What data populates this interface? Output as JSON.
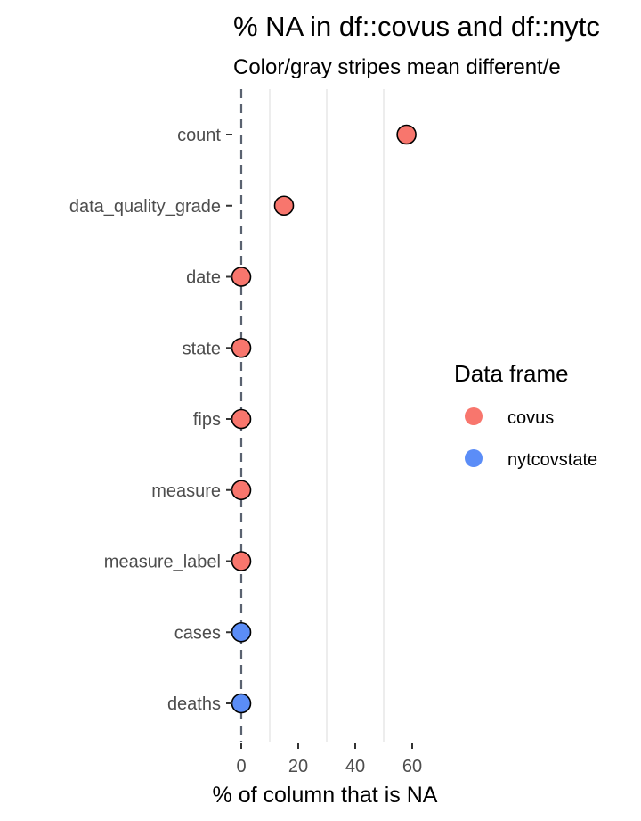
{
  "chart_data": {
    "type": "scatter",
    "title": "% NA in df::covus and df::nytc",
    "subtitle": "Color/gray stripes mean different/e",
    "xlabel": "% of column that is NA",
    "ylabel": "",
    "xlim": [
      0,
      70
    ],
    "x_ticks": [
      "0",
      "20",
      "40",
      "60"
    ],
    "x_tick_values": [
      0,
      20,
      40,
      60
    ],
    "grid": true,
    "legend": {
      "title": "Data frame",
      "position": "right"
    },
    "categories": [
      "count",
      "data_quality_grade",
      "date",
      "state",
      "fips",
      "measure",
      "measure_label",
      "cases",
      "deaths"
    ],
    "series": [
      {
        "name": "covus",
        "color": "#F8766D",
        "points": [
          {
            "label": "count",
            "x": 58
          },
          {
            "label": "data_quality_grade",
            "x": 15
          },
          {
            "label": "date",
            "x": 0
          },
          {
            "label": "state",
            "x": 0
          },
          {
            "label": "fips",
            "x": 0
          },
          {
            "label": "measure",
            "x": 0
          },
          {
            "label": "measure_label",
            "x": 0
          }
        ]
      },
      {
        "name": "nytcovstate",
        "color": "#5B8DF7",
        "points": [
          {
            "label": "cases",
            "x": 0
          },
          {
            "label": "deaths",
            "x": 0
          }
        ]
      }
    ]
  }
}
